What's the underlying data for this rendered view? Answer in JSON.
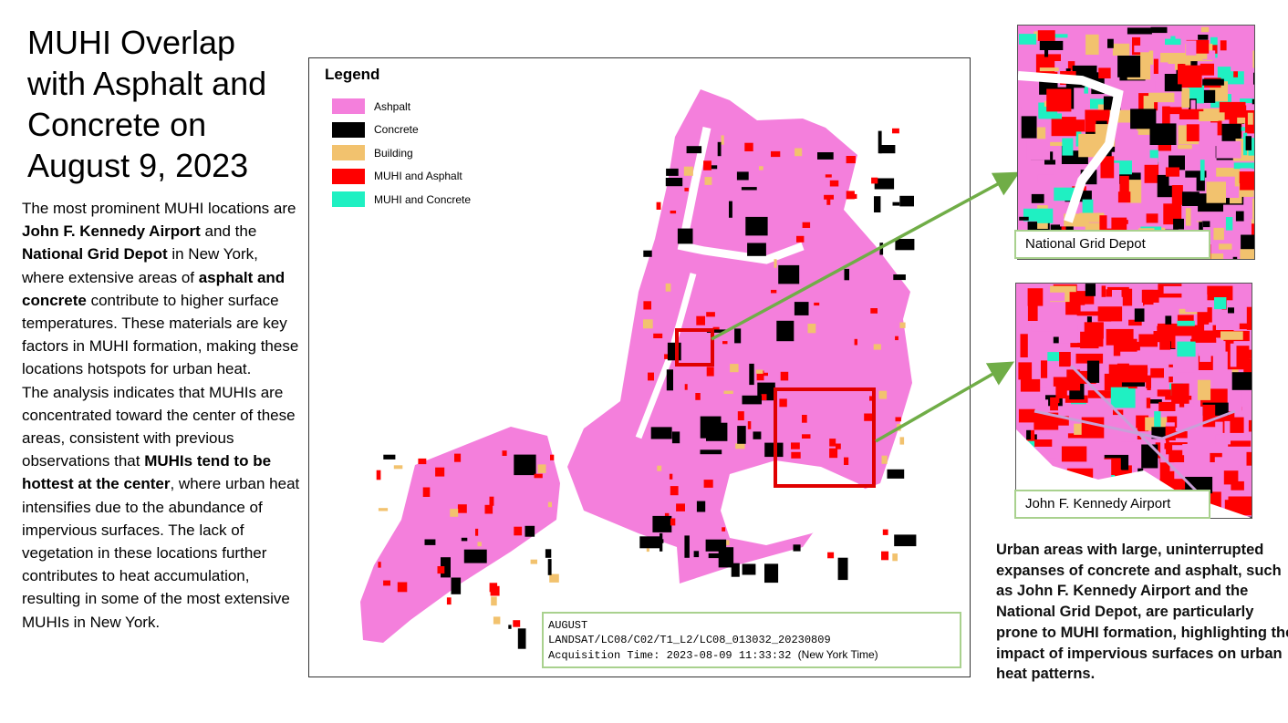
{
  "title": "MUHI Overlap with Asphalt and Concrete on August 9, 2023",
  "left_text": {
    "paragraphs": [
      [
        {
          "text": "The most prominent MUHI locations are ",
          "bold": false
        },
        {
          "text": "John F. Kennedy Airport",
          "bold": true
        },
        {
          "text": " and the ",
          "bold": false
        },
        {
          "text": "National Grid Depot",
          "bold": true
        },
        {
          "text": " in New York, where extensive areas of ",
          "bold": false
        },
        {
          "text": "asphalt and concrete",
          "bold": true
        },
        {
          "text": " contribute to higher surface temperatures. These materials are key factors in MUHI formation, making these locations hotspots for urban heat.",
          "bold": false
        }
      ],
      [
        {
          "text": "The analysis indicates that MUHIs are concentrated toward the center of these areas, consistent with previous observations that ",
          "bold": false
        },
        {
          "text": "MUHIs tend to be hottest at the center",
          "bold": true
        },
        {
          "text": ", where urban heat intensifies due to the abundance of impervious surfaces. The lack of vegetation in these locations further contributes to heat accumulation, resulting in some of the most extensive MUHIs in New York.",
          "bold": false
        }
      ]
    ]
  },
  "legend": {
    "title": "Legend",
    "items": [
      {
        "label": "Ashpalt",
        "color": "#f47fdc"
      },
      {
        "label": "Concrete",
        "color": "#000000"
      },
      {
        "label": "Building",
        "color": "#f2c26e"
      },
      {
        "label": "MUHI and Asphalt",
        "color": "#ff0000"
      },
      {
        "label": "MUHI and Concrete",
        "color": "#1ff0c2"
      }
    ]
  },
  "info_box": {
    "lines": [
      "AUGUST",
      "LANDSAT/LC08/C02/T1_L2/LC08_013032_20230809",
      "Acquisition Time: 2023-08-09 11:33:32"
    ],
    "note": "(New York Time)"
  },
  "insets": [
    {
      "label": "National Grid Depot"
    },
    {
      "label": "John F. Kennedy Airport"
    }
  ],
  "right_text": "Urban areas with large, uninterrupted expanses of concrete and asphalt, such as John F. Kennedy Airport and the National Grid Depot, are particularly prone to MUHI formation, highlighting the impact of impervious surfaces on urban heat patterns."
}
